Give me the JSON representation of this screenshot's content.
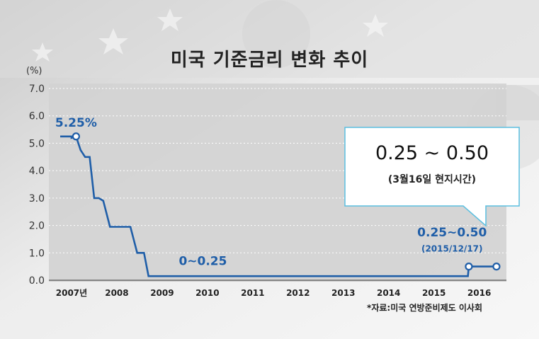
{
  "title": "미국 기준금리 변화 추이",
  "unit": "(%)",
  "source": "*자료:미국 연방준비제도 이사회",
  "callout": {
    "value": "0.25 ~ 0.50",
    "note": "(3월16일 현지시간)"
  },
  "colors": {
    "line": "#1f5ea8",
    "label": "#1f5ea8",
    "plot_bg": "#d3d3d3",
    "callout_border": "#5bbfe0"
  },
  "chart_data": {
    "type": "line",
    "title": "미국 기준금리 변화 추이",
    "xlabel": "",
    "ylabel": "(%)",
    "ylim": [
      0,
      7
    ],
    "xlim": [
      2006.5,
      2016.6
    ],
    "grid": true,
    "yticks": [
      "0.0",
      "1.0",
      "2.0",
      "3.0",
      "4.0",
      "5.0",
      "6.0",
      "7.0"
    ],
    "xticks": [
      {
        "x": 2007,
        "label": "2007년"
      },
      {
        "x": 2008,
        "label": "2008"
      },
      {
        "x": 2009,
        "label": "2009"
      },
      {
        "x": 2010,
        "label": "2010"
      },
      {
        "x": 2011,
        "label": "2011"
      },
      {
        "x": 2012,
        "label": "2012"
      },
      {
        "x": 2013,
        "label": "2013"
      },
      {
        "x": 2014,
        "label": "2014"
      },
      {
        "x": 2015,
        "label": "2015"
      },
      {
        "x": 2016,
        "label": "2016"
      }
    ],
    "series": [
      {
        "points": [
          [
            2006.75,
            5.25
          ],
          [
            2007.0,
            5.25
          ],
          [
            2007.0,
            5.2
          ],
          [
            2007.1,
            5.25
          ],
          [
            2007.2,
            4.75
          ],
          [
            2007.3,
            4.5
          ],
          [
            2007.4,
            4.5
          ],
          [
            2007.5,
            3.0
          ],
          [
            2007.6,
            3.0
          ],
          [
            2007.7,
            2.9
          ],
          [
            2007.85,
            1.95
          ],
          [
            2008.05,
            1.95
          ],
          [
            2008.2,
            1.95
          ],
          [
            2008.3,
            1.95
          ],
          [
            2008.45,
            1.0
          ],
          [
            2008.6,
            1.0
          ],
          [
            2008.7,
            0.15
          ],
          [
            2015.75,
            0.15
          ],
          [
            2015.77,
            0.5
          ],
          [
            2016.05,
            0.5
          ],
          [
            2016.38,
            0.5
          ]
        ]
      }
    ],
    "markers": [
      {
        "x": 2007.1,
        "y": 5.25
      },
      {
        "x": 2015.77,
        "y": 0.5
      },
      {
        "x": 2016.38,
        "y": 0.5
      }
    ],
    "annotations": [
      {
        "text": "5.25%",
        "x": 2007.1,
        "y": 5.6,
        "style": "label"
      },
      {
        "text": "0~0.25",
        "x": 2009.9,
        "y": 0.55,
        "style": "label"
      },
      {
        "text": "0.25~0.50",
        "x": 2015.4,
        "y": 1.6,
        "style": "label"
      },
      {
        "text": "(2015/12/17)",
        "x": 2015.4,
        "y": 1.05,
        "style": "sublabel"
      }
    ]
  }
}
